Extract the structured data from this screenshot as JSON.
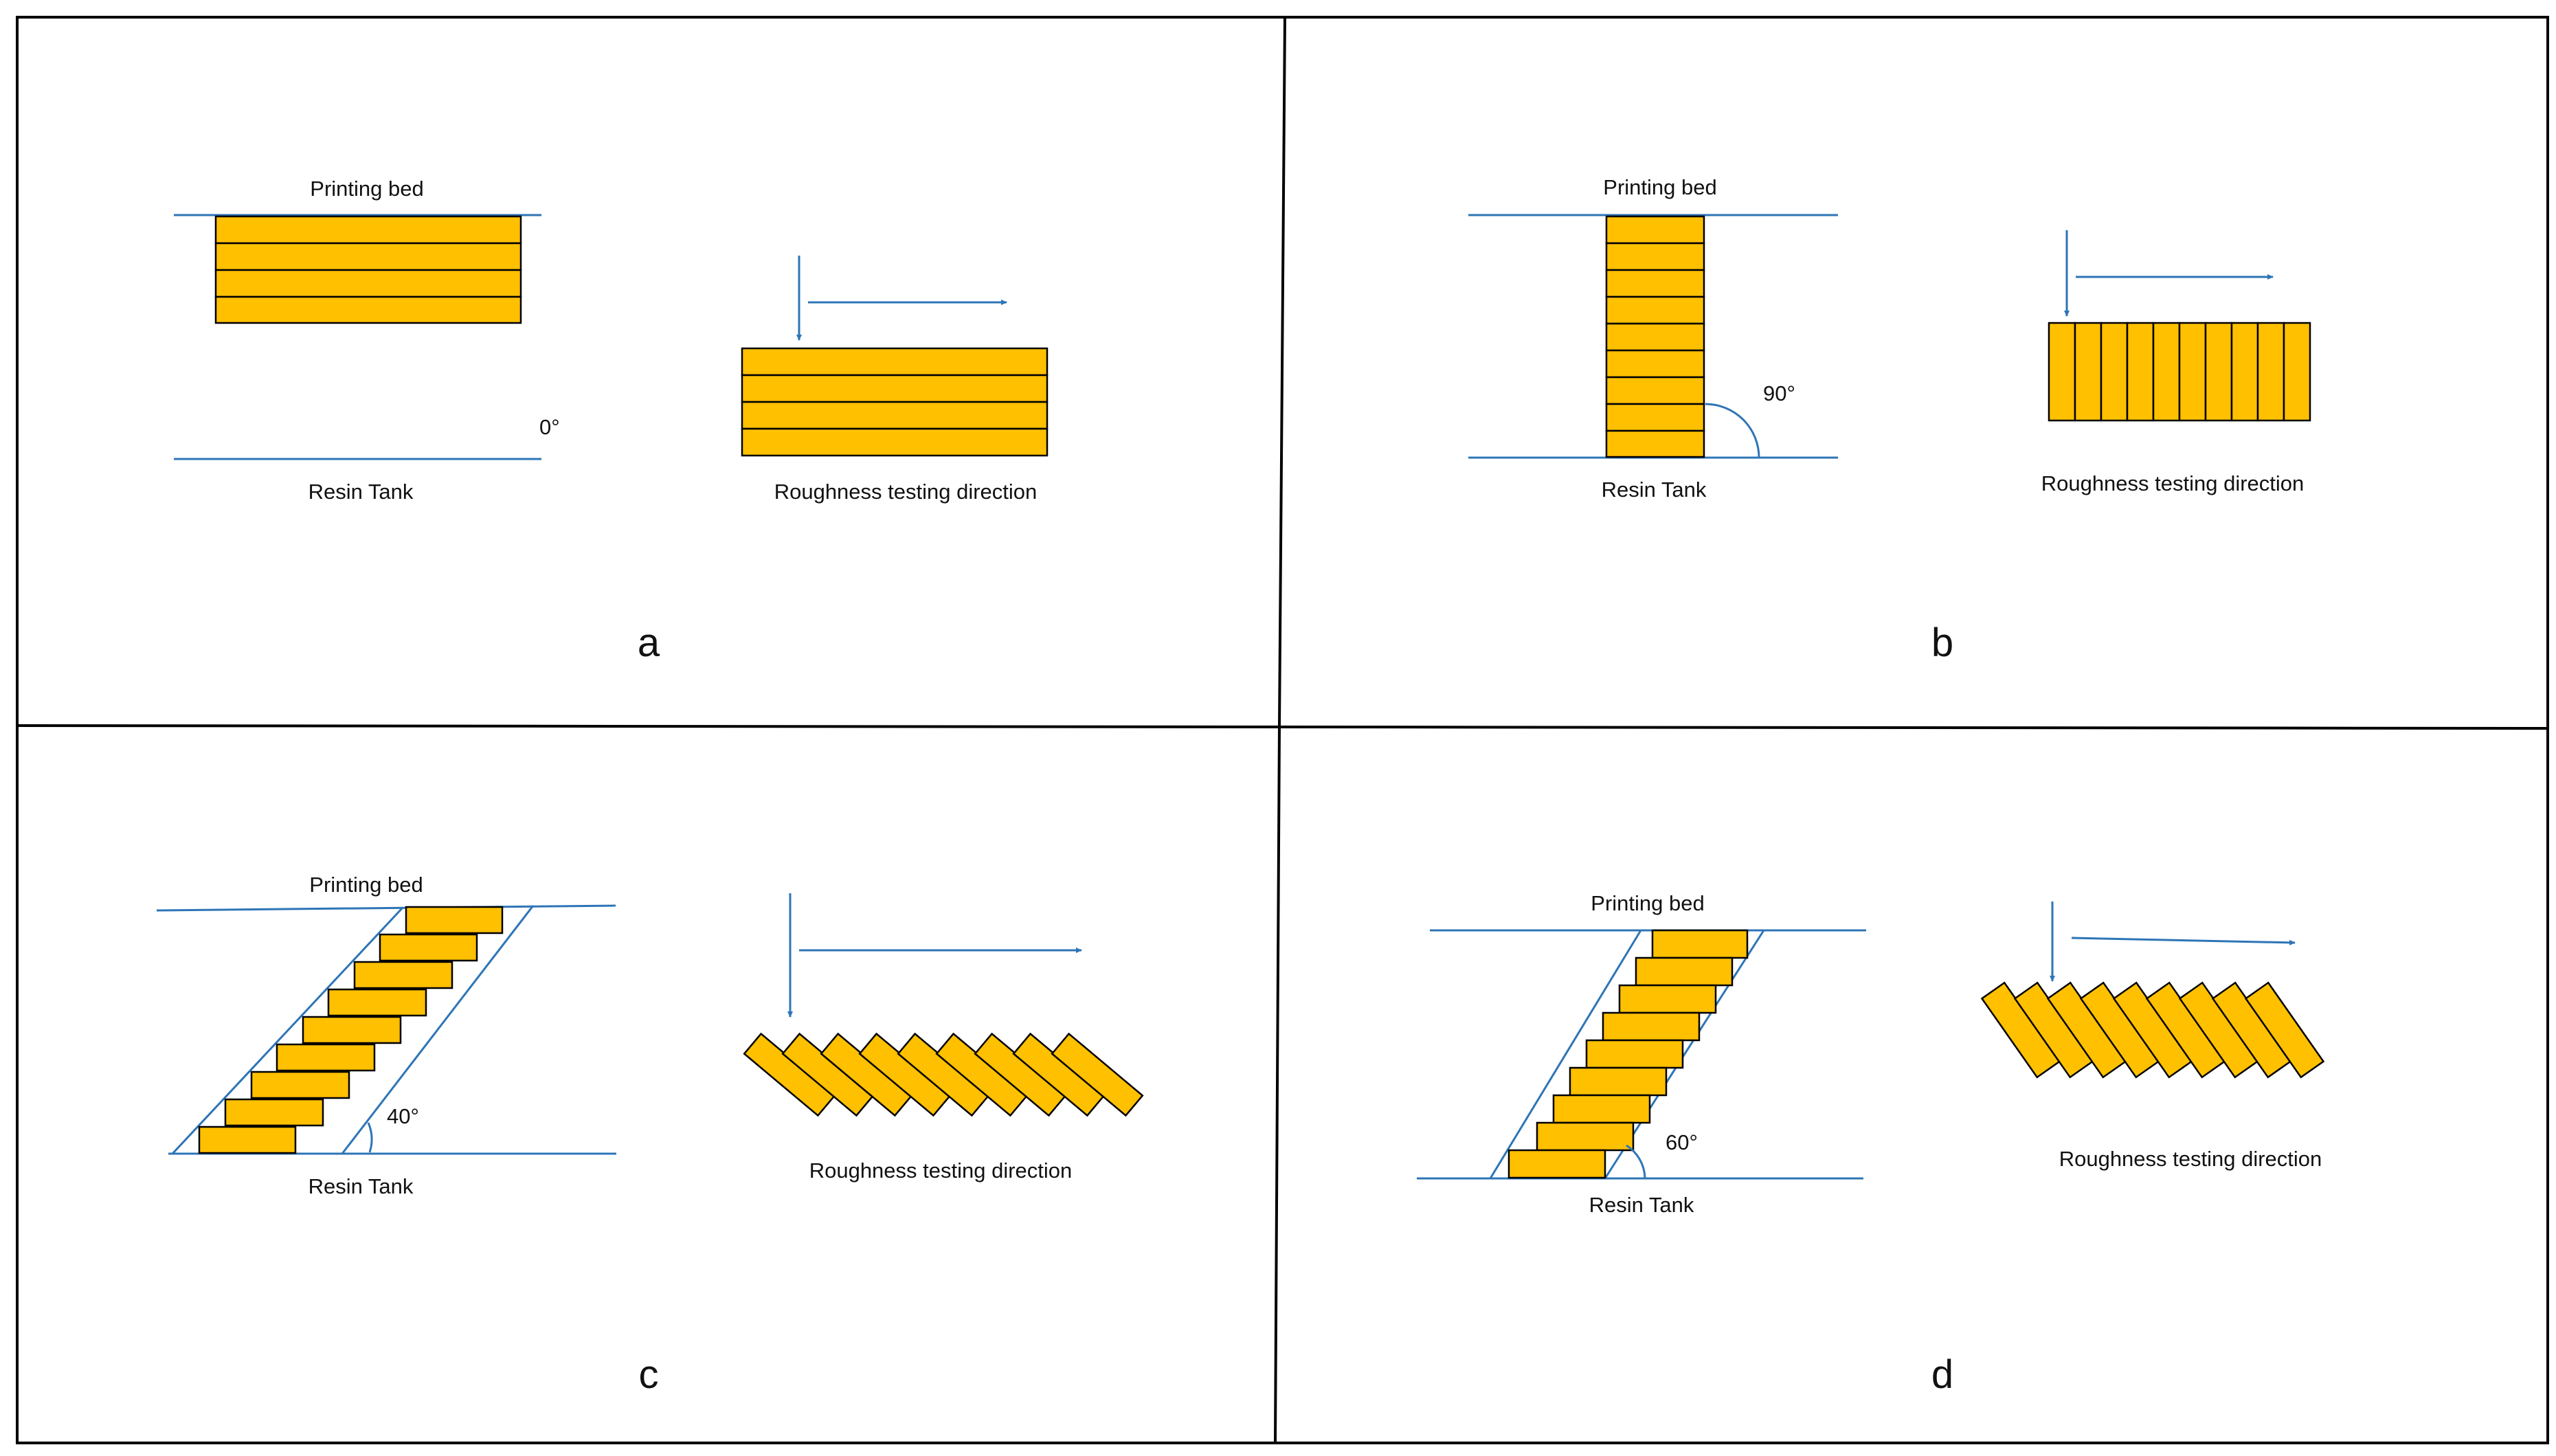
{
  "colors": {
    "layer_fill": "#ffc000",
    "layer_outline": "#000000",
    "guide_line": "#2e75b6",
    "border": "#000000"
  },
  "panels": [
    {
      "letter": "a",
      "top_label": "Printing bed",
      "bottom_label": "Resin Tank",
      "angle_label": "0°",
      "direction_label": "Roughness testing direction"
    },
    {
      "letter": "b",
      "top_label": "Printing bed",
      "bottom_label": "Resin Tank",
      "angle_label": "90°",
      "direction_label": "Roughness testing direction"
    },
    {
      "letter": "c",
      "top_label": "Printing bed",
      "bottom_label": "Resin Tank",
      "angle_label": "40°",
      "direction_label": "Roughness testing direction"
    },
    {
      "letter": "d",
      "top_label": "Printing bed",
      "bottom_label": "Resin Tank",
      "angle_label": "60°",
      "direction_label": "Roughness testing direction"
    }
  ]
}
